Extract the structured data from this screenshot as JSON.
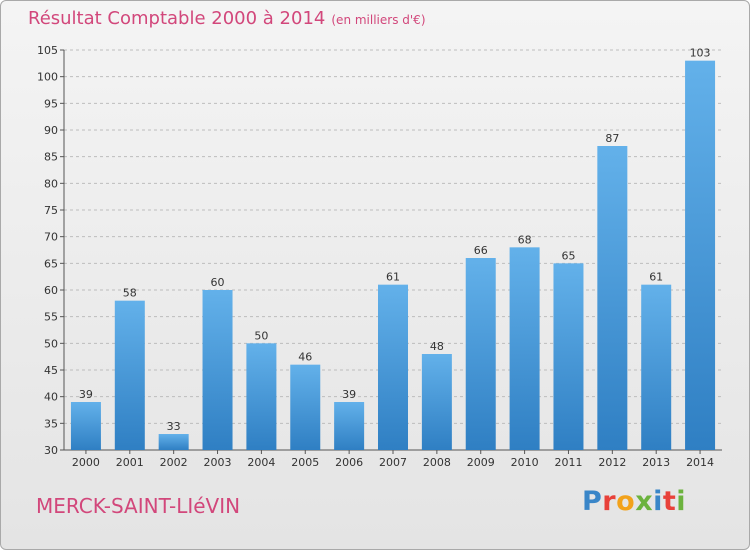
{
  "header": {
    "title": "Résultat Comptable 2000 à 2014",
    "subtitle": "(en milliers d'€)"
  },
  "footer": {
    "commune": "MERCK-SAINT-LIéVIN",
    "logo": "Proxiti",
    "logo_colors": [
      "#3a86c8",
      "#e8413a",
      "#f2a21b",
      "#6cb33e",
      "#3a86c8",
      "#e8413a",
      "#6cb33e"
    ]
  },
  "colors": {
    "title": "#d2477b",
    "bar_top": "#63b1ea",
    "bar_bottom": "#2f7fc3",
    "grid": "#bdbdbd"
  },
  "chart_data": {
    "type": "bar",
    "title": "Résultat Comptable 2000 à 2014",
    "subtitle": "(en milliers d'€)",
    "xlabel": "",
    "ylabel": "",
    "categories": [
      "2000",
      "2001",
      "2002",
      "2003",
      "2004",
      "2005",
      "2006",
      "2007",
      "2008",
      "2009",
      "2010",
      "2011",
      "2012",
      "2013",
      "2014"
    ],
    "values": [
      39,
      58,
      33,
      60,
      50,
      46,
      39,
      61,
      48,
      66,
      68,
      65,
      87,
      61,
      103
    ],
    "ylim": [
      30,
      105
    ],
    "yticks": [
      30,
      35,
      40,
      45,
      50,
      55,
      60,
      65,
      70,
      75,
      80,
      85,
      90,
      95,
      100,
      105
    ],
    "grid": "horizontal dashed",
    "data_labels": true
  }
}
